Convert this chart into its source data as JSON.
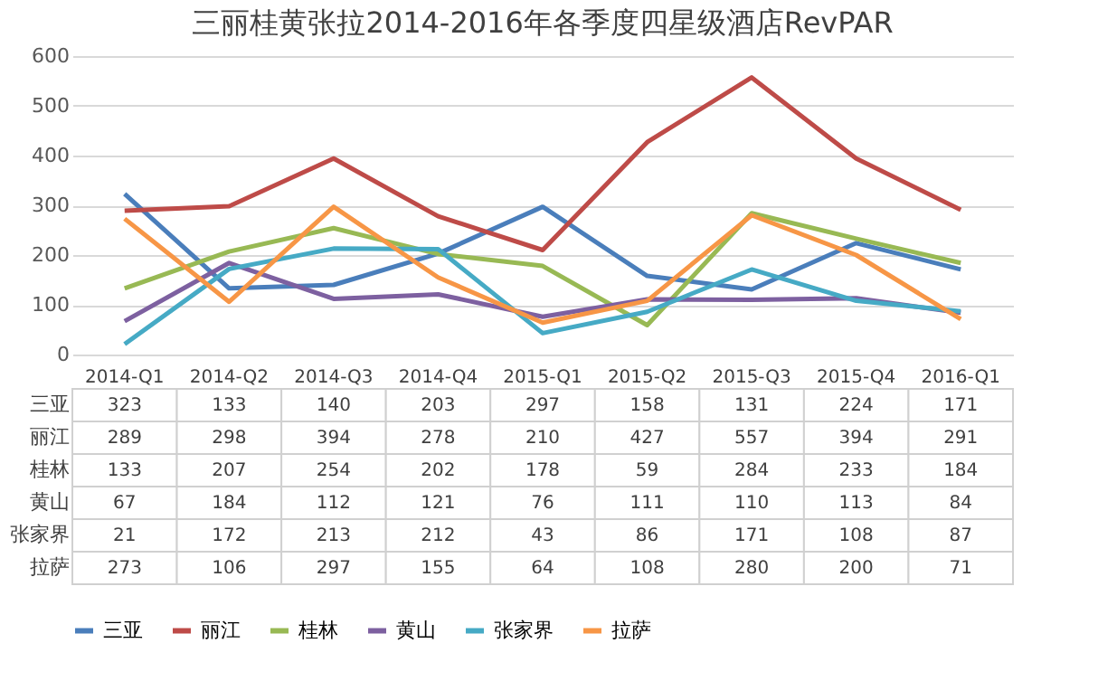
{
  "chart_data": {
    "type": "line",
    "title": "三丽桂黄张拉2014-2016年各季度四星级酒店RevPAR",
    "categories": [
      "2014-Q1",
      "2014-Q2",
      "2014-Q3",
      "2014-Q4",
      "2015-Q1",
      "2015-Q2",
      "2015-Q3",
      "2015-Q4",
      "2016-Q1"
    ],
    "series": [
      {
        "name": "三亚",
        "color": "#4a7ebb",
        "values": [
          323,
          133,
          140,
          203,
          297,
          158,
          131,
          224,
          171
        ]
      },
      {
        "name": "丽江",
        "color": "#be4b48",
        "values": [
          289,
          298,
          394,
          278,
          210,
          427,
          557,
          394,
          291
        ]
      },
      {
        "name": "桂林",
        "color": "#98b954",
        "values": [
          133,
          207,
          254,
          202,
          178,
          59,
          284,
          233,
          184
        ]
      },
      {
        "name": "黄山",
        "color": "#7d60a0",
        "values": [
          67,
          184,
          112,
          121,
          76,
          111,
          110,
          113,
          84
        ]
      },
      {
        "name": "张家界",
        "color": "#46aac5",
        "values": [
          21,
          172,
          213,
          212,
          43,
          86,
          171,
          108,
          87
        ]
      },
      {
        "name": "拉萨",
        "color": "#f79646",
        "values": [
          273,
          106,
          297,
          155,
          64,
          108,
          280,
          200,
          71
        ]
      }
    ],
    "ylim": [
      0,
      600
    ],
    "yticks": [
      0,
      100,
      200,
      300,
      400,
      500,
      600
    ],
    "grid": "y",
    "legend": "bottom",
    "data_labels": true,
    "marker": "none",
    "line_style": "solid"
  }
}
